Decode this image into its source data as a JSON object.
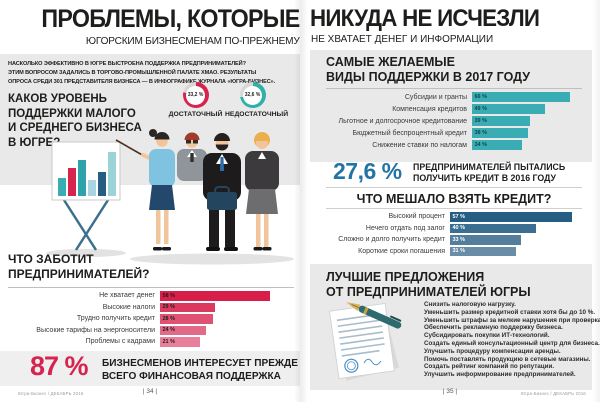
{
  "spread": {
    "left": {
      "title": "ПРОБЛЕМЫ, КОТОРЫЕ",
      "subtitle": "ЮГОРСКИМ БИЗНЕСМЕНАМ ПО-ПРЕЖНЕМУ",
      "intro": "НАСКОЛЬКО ЭФФЕКТИВНО В ЮГРЕ ВЫСТРОЕНА ПОДДЕРЖКА ПРЕДПРИНИМАТЕЛЕЙ?\nЭТИМ ВОПРОСОМ ЗАДАЛИСЬ В ТОРГОВО-ПРОМЫШЛЕННОЙ ПАЛАТЕ ХМАО. РЕЗУЛЬТАТЫ\nОПРОСА СРЕДИ 301 ПРЕДСТАВИТЕЛЯ БИЗНЕСА — В ИНФОГРАФИКЕ ЖУРНАЛА «ЮГРА-БИЗНЕС».",
      "highlight_value": "87 %",
      "highlight_text": "БИЗНЕСМЕНОВ ИНТЕРЕСУЕТ ПРЕЖДЕ\nВСЕГО ФИНАНСОВАЯ ПОДДЕРЖКА",
      "page_number": "| 34 |",
      "imprint": "Югра-Бизнес / ДЕКАБРЬ 2016"
    },
    "right": {
      "title": "НИКУДА НЕ ИСЧЕЗЛИ",
      "subtitle": "НЕ ХВАТАЕТ ДЕНЕГ И ИНФОРМАЦИИ",
      "credit_value": "27,6 %",
      "credit_text": "ПРЕДПРИНИМАТЕЛЕЙ ПЫТАЛИСЬ\nПОЛУЧИТЬ КРЕДИТ В 2016 ГОДУ",
      "suggestions_title": "ЛУЧШИЕ ПРЕДЛОЖЕНИЯ\nОТ ПРЕДПРИНИМАТЕЛЕЙ ЮГРЫ",
      "suggestions": [
        "Снизить налоговую нагрузку.",
        "Уменьшить размер кредитной ставки хотя бы до 10 %.",
        "Уменьшить штрафы за мелкие нарушения при проверках.",
        "Обеспечить рекламную поддержку бизнеса.",
        "Субсидировать покупки ИТ-технологий.",
        "Создать единый консультационный центр для бизнеса.",
        "Улучшить процедуру компенсации аренды.",
        "Помочь поставлять продукцию в сетевые магазины.",
        "Создать рейтинг компаний по репутации.",
        "Улучшить информирование предпринимателей."
      ],
      "page_number": "| 35 |",
      "imprint": "Югра-Бизнес / ДЕКАБРЬ 2016"
    },
    "colors": {
      "teal": "#3aacb3",
      "crimson": "#d6244e",
      "stat_blue": "#2373a5",
      "dark_blue": "#265d82",
      "box_gray": "#e9e9e9"
    }
  },
  "chart_data": [
    {
      "id": "support_level",
      "type": "pie",
      "title": "КАКОВ УРОВЕНЬ\nПОДДЕРЖКИ МАЛОГО\nИ СРЕДНЕГО БИЗНЕСА\nВ ЮГРЕ?",
      "slices": [
        {
          "label": "ДОСТАТОЧНЫЙ",
          "value": 33.2,
          "display": "33,2 %",
          "color": "#d6244e"
        },
        {
          "label": "НЕДОСТАТОЧНЫЙ",
          "value": 32.6,
          "display": "32,6 %",
          "color": "#2fb0a8"
        }
      ]
    },
    {
      "id": "concerns",
      "type": "bar",
      "title": "ЧТО ЗАБОТИТ\nПРЕДПРИНИМАТЕЛЕЙ?",
      "unit": "%",
      "xlim": [
        0,
        100
      ],
      "categories": [
        "Не хватает денег",
        "Высокие налоги",
        "Трудно получить кредит",
        "Высокие тарифы на энергоносители",
        "Проблемы с кадрами"
      ],
      "values": [
        58,
        29,
        28,
        24,
        21
      ],
      "bar_colors": [
        "#d81f49",
        "#db3a5e",
        "#df5274",
        "#e36988",
        "#e8809b"
      ],
      "value_label_color": "#1d1d1b"
    },
    {
      "id": "desired_support",
      "type": "bar",
      "title": "САМЫЕ ЖЕЛАЕМЫЕ\nВИДЫ ПОДДЕРЖКИ В 2017 ГОДУ",
      "unit": "%",
      "xlim": [
        0,
        100
      ],
      "categories": [
        "Субсидии и гранты",
        "Компенсация кредитов",
        "Льготное и долгосрочное кредитование",
        "Бюджетный беспроцентный кредит",
        "Снижение ставки по налогам"
      ],
      "values": [
        66,
        49,
        39,
        38,
        34
      ],
      "bar_colors": [
        "#3aacb3",
        "#3aacb3",
        "#3aacb3",
        "#3aacb3",
        "#3aacb3"
      ],
      "value_label_color": "#11444a"
    },
    {
      "id": "credit_obstacles",
      "type": "bar",
      "title": "ЧТО МЕШАЛО ВЗЯТЬ КРЕДИТ?",
      "unit": "%",
      "xlim": [
        0,
        100
      ],
      "categories": [
        "Высокий процент",
        "Нечего отдать под залог",
        "Сложно и долго получить кредит",
        "Короткие сроки погашения"
      ],
      "values": [
        57,
        40,
        33,
        31
      ],
      "bar_colors": [
        "#265d82",
        "#3b6f92",
        "#547e9b",
        "#6a8da7"
      ],
      "value_label_color": "#ffffff"
    }
  ]
}
